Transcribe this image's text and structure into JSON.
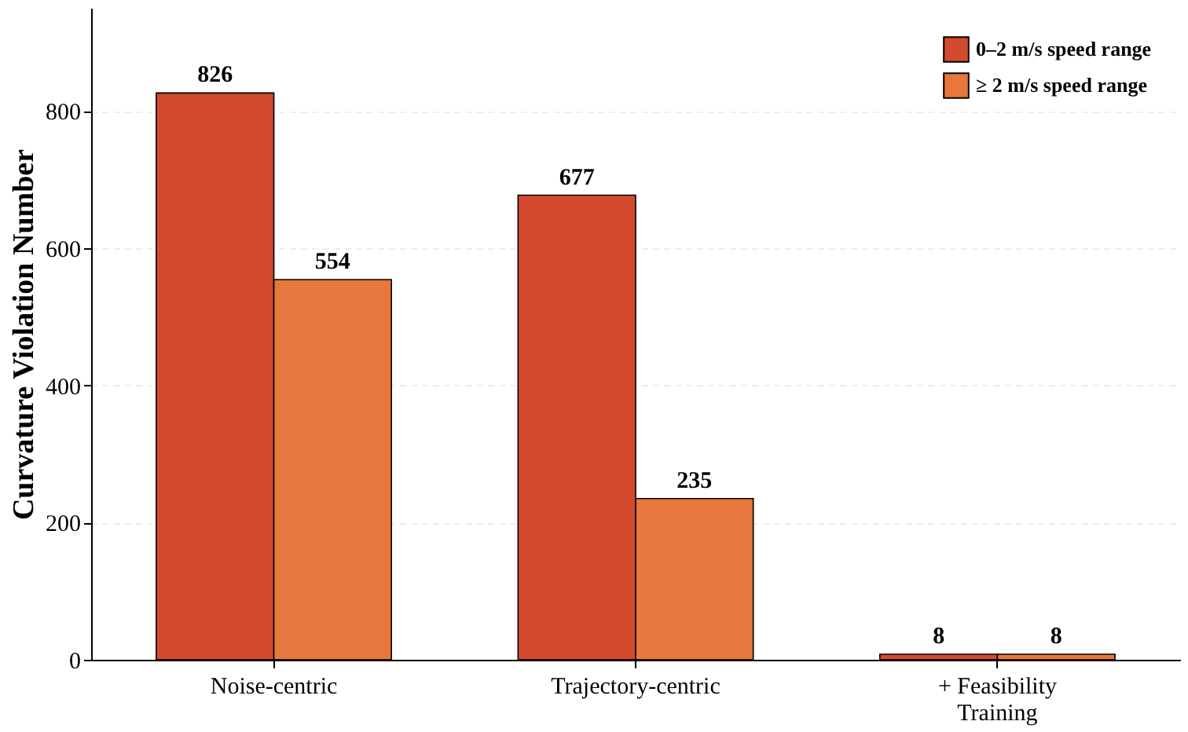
{
  "chart_data": {
    "type": "bar",
    "ylabel": "Curvature Violation Number",
    "categories": [
      "Noise-centric",
      "Trajectory-centric",
      "+ Feasibility\nTraining"
    ],
    "series": [
      {
        "name": "0–2 m/s speed range",
        "color": "#d44a2f",
        "values": [
          826,
          677,
          8
        ]
      },
      {
        "name": "≥ 2 m/s speed range",
        "color": "#e8773d",
        "values": [
          554,
          235,
          8
        ]
      }
    ],
    "ylim": [
      0,
      950
    ],
    "yticks": [
      0,
      200,
      400,
      600,
      800
    ],
    "grid": "y",
    "legend": "top right",
    "data_labels": true
  }
}
